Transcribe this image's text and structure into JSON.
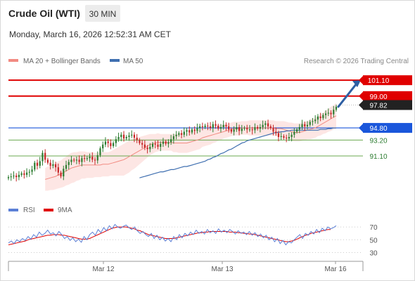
{
  "header": {
    "instrument": "Crude Oil (WTI)",
    "timeframe": "30 MIN",
    "timestamp": "Monday, March 16, 2026 12:52:31 AM CET"
  },
  "legend": {
    "ma20_label": "MA 20 + Bollinger Bands",
    "ma50_label": "MA 50",
    "credit": "Research © 2026 Trading Central",
    "rsi_label": "RSI",
    "rsi_ma_label": "9MA"
  },
  "colors": {
    "candle_up": "#2e7d32",
    "candle_down": "#c62828",
    "ma20": "#f28b82",
    "band_fill": "#fde3e1",
    "ma50": "#3f6fb0",
    "resistance": "#e00000",
    "pivot": "#1a56db",
    "support": "#6aa84f",
    "current_price_bg": "#222222",
    "rsi": "#5b7fd6",
    "rsi_ma": "#e00000",
    "arrow": "#2e5fa3"
  },
  "chart_data": [
    {
      "type": "candlestick",
      "title": "Crude Oil (WTI)",
      "timeframe": "30 MIN",
      "x_ticks": [
        "Mar 12",
        "Mar 13",
        "Mar 16"
      ],
      "ylim": [
        85.9,
        102.6
      ],
      "current_price": 97.82,
      "levels": [
        {
          "label": "101.10",
          "value": 101.1,
          "kind": "resistance"
        },
        {
          "label": "99.00",
          "value": 99.0,
          "kind": "resistance"
        },
        {
          "label": "97.82",
          "value": 97.82,
          "kind": "current"
        },
        {
          "label": "94.80",
          "value": 94.8,
          "kind": "pivot"
        },
        {
          "label": "93.20",
          "value": 93.2,
          "kind": "support"
        },
        {
          "label": "91.10",
          "value": 91.1,
          "kind": "support"
        }
      ],
      "forecast_arrow": {
        "from": 97.6,
        "to": 101.1
      },
      "closes": [
        88.3,
        88.4,
        88.5,
        88.3,
        88.6,
        88.8,
        88.6,
        88.9,
        89.0,
        89.3,
        90.2,
        89.8,
        90.4,
        91.5,
        90.6,
        90.2,
        89.8,
        90.0,
        89.6,
        88.9,
        88.4,
        89.4,
        89.9,
        90.3,
        90.6,
        90.5,
        90.6,
        90.3,
        90.8,
        90.7,
        90.8,
        91.0,
        90.6,
        90.5,
        91.2,
        92.1,
        92.6,
        93.0,
        92.8,
        92.4,
        92.8,
        93.3,
        93.6,
        93.9,
        93.4,
        93.6,
        93.8,
        93.9,
        93.5,
        93.2,
        92.8,
        92.6,
        92.2,
        92.0,
        92.3,
        92.7,
        92.6,
        92.3,
        92.7,
        93.0,
        92.7,
        92.9,
        93.3,
        93.7,
        93.9,
        94.1,
        93.9,
        94.3,
        94.5,
        94.2,
        94.6,
        94.4,
        94.8,
        95.0,
        94.9,
        95.1,
        95.0,
        94.8,
        95.3,
        95.1,
        94.7,
        94.9,
        95.2,
        95.0,
        94.6,
        94.3,
        94.6,
        94.9,
        94.4,
        94.7,
        94.8,
        94.6,
        94.6,
        94.5,
        94.9,
        94.7,
        94.9,
        95.2,
        95.4,
        95.0,
        94.8,
        94.3,
        94.1,
        93.6,
        93.7,
        93.5,
        93.4,
        93.6,
        93.9,
        94.3,
        94.6,
        94.9,
        95.3,
        95.0,
        95.2,
        95.6,
        95.7,
        95.9,
        96.3,
        96.1,
        96.5,
        96.7,
        96.8,
        96.6,
        97.2,
        97.6
      ],
      "ma20": [
        88.0,
        88.1,
        88.2,
        88.3,
        88.4,
        88.6,
        88.7,
        88.9,
        89.1,
        89.3,
        89.5,
        89.6,
        89.7,
        89.8,
        89.9,
        89.9,
        89.9,
        89.9,
        89.9,
        89.9,
        89.9,
        89.9,
        90.0,
        90.0,
        90.0,
        90.1,
        90.2,
        90.3,
        90.4,
        90.5,
        90.6,
        90.8,
        91.0,
        91.2,
        91.4,
        91.6,
        91.8,
        92.0,
        92.2,
        92.4,
        92.6,
        92.7,
        92.8,
        92.9,
        92.9,
        92.9,
        92.9,
        92.9,
        92.9,
        92.8,
        92.8,
        92.8,
        92.8,
        92.8,
        92.8,
        92.9,
        93.0,
        93.1,
        93.2,
        93.3,
        93.5,
        93.6,
        93.7,
        93.8,
        93.9,
        94.0,
        94.1,
        94.2,
        94.3,
        94.4,
        94.5,
        94.6,
        94.7,
        94.7,
        94.7,
        94.8,
        94.8,
        94.8,
        94.8,
        94.8,
        94.8,
        94.8,
        94.8,
        94.8,
        94.8,
        94.8,
        94.8,
        94.8,
        94.7,
        94.7,
        94.7,
        94.6,
        94.5,
        94.4,
        94.3,
        94.2,
        94.2,
        94.2,
        94.3,
        94.4,
        94.5,
        94.6,
        94.7,
        94.8,
        95.0,
        95.2,
        95.4,
        95.6,
        95.8,
        96.0,
        96.2,
        96.4
      ],
      "ma50": [
        88.2,
        88.3,
        88.4,
        88.5,
        88.6,
        88.7,
        88.8,
        88.9,
        89.0,
        89.0,
        89.1,
        89.2,
        89.3,
        89.3,
        89.4,
        89.5,
        89.6,
        89.7,
        89.7,
        89.8,
        89.9,
        90.0,
        90.1,
        90.2,
        90.3,
        90.4,
        90.6,
        90.7,
        90.9,
        91.0,
        91.2,
        91.4,
        91.5,
        91.7,
        91.9,
        92.0,
        92.2,
        92.4,
        92.6,
        92.8,
        92.9,
        93.1,
        93.2,
        93.3,
        93.4,
        93.5,
        93.6,
        93.7,
        93.8,
        93.9,
        94.0,
        94.1,
        94.2,
        94.2,
        94.3,
        94.3,
        94.4,
        94.4,
        94.5,
        94.5,
        94.5,
        94.5,
        94.5,
        94.5,
        94.5,
        94.5,
        94.5,
        94.5,
        94.5,
        94.6,
        94.6,
        94.6,
        94.7,
        94.7,
        94.8,
        94.8
      ],
      "band_half_width": [
        1.5,
        1.6,
        1.6,
        1.7,
        1.7,
        1.8,
        1.8,
        1.9,
        1.9,
        2.0,
        2.0,
        2.0,
        1.9,
        1.9,
        1.8,
        1.8,
        1.7,
        1.7,
        1.7,
        1.6,
        1.6,
        1.6,
        1.6,
        1.6,
        1.6,
        1.6,
        1.7,
        1.8,
        1.9,
        2.0,
        2.1,
        2.1,
        2.1,
        2.0,
        2.0,
        1.9,
        1.8,
        1.7,
        1.6,
        1.5,
        1.4,
        1.3,
        1.2,
        1.2,
        1.1,
        1.1,
        1.1,
        1.1,
        1.1,
        1.2,
        1.2,
        1.3,
        1.3,
        1.3,
        1.3,
        1.3,
        1.3,
        1.3,
        1.3,
        1.3,
        1.2,
        1.2,
        1.2,
        1.2,
        1.1,
        1.1,
        1.0,
        1.0,
        0.9,
        0.9,
        0.9,
        0.9,
        0.9,
        0.9,
        0.9,
        0.9,
        0.9,
        0.9,
        1.0,
        1.0,
        1.0,
        1.0,
        1.0,
        1.0,
        1.0,
        1.0,
        1.0,
        1.0,
        1.0,
        1.0,
        1.0,
        1.1,
        1.1,
        1.1,
        1.2,
        1.2,
        1.2,
        1.2,
        1.2,
        1.2,
        1.2,
        1.3,
        1.3,
        1.3,
        1.3,
        1.4,
        1.4,
        1.5,
        1.5,
        1.6,
        1.6,
        1.7
      ]
    },
    {
      "type": "line",
      "title": "RSI",
      "y_ticks": [
        70,
        50,
        30
      ],
      "ylim": [
        25,
        80
      ],
      "series": [
        {
          "name": "RSI",
          "values": [
            45,
            48,
            44,
            50,
            47,
            52,
            49,
            55,
            51,
            58,
            54,
            62,
            57,
            60,
            65,
            59,
            61,
            56,
            63,
            58,
            52,
            55,
            49,
            53,
            47,
            51,
            46,
            55,
            50,
            58,
            62,
            57,
            66,
            61,
            69,
            64,
            72,
            67,
            74,
            70,
            68,
            71,
            73,
            69,
            66,
            70,
            64,
            60,
            63,
            58,
            55,
            60,
            52,
            57,
            50,
            54,
            48,
            52,
            47,
            55,
            50,
            58,
            53,
            60,
            56,
            62,
            58,
            65,
            60,
            63,
            59,
            66,
            61,
            64,
            60,
            67,
            62,
            65,
            61,
            66,
            63,
            59,
            64,
            60,
            62,
            58,
            63,
            57,
            61,
            55,
            59,
            53,
            57,
            50,
            54,
            47,
            52,
            44,
            49,
            42,
            47,
            45,
            50,
            54,
            58,
            52,
            60,
            57,
            63,
            59,
            66,
            61,
            68,
            64,
            70,
            67,
            69,
            72
          ]
        },
        {
          "name": "9MA",
          "values": [
            42,
            43,
            44,
            45,
            46,
            47,
            48,
            50,
            51,
            52,
            53,
            54,
            55,
            56,
            57,
            57,
            58,
            58,
            58,
            57,
            57,
            56,
            55,
            54,
            53,
            52,
            51,
            51,
            51,
            52,
            54,
            56,
            58,
            60,
            62,
            64,
            66,
            68,
            69,
            70,
            70,
            70,
            70,
            69,
            68,
            67,
            65,
            64,
            62,
            60,
            58,
            57,
            56,
            55,
            54,
            53,
            52,
            52,
            52,
            52,
            53,
            54,
            55,
            56,
            57,
            58,
            59,
            60,
            61,
            61,
            62,
            62,
            63,
            63,
            63,
            63,
            63,
            63,
            63,
            62,
            62,
            62,
            61,
            61,
            60,
            60,
            59,
            59,
            58,
            57,
            56,
            55,
            54,
            53,
            52,
            51,
            50,
            49,
            48,
            47,
            47,
            48,
            49,
            51,
            53,
            55,
            57,
            58,
            60,
            61,
            62,
            63,
            64,
            65,
            66,
            66
          ]
        }
      ]
    }
  ]
}
